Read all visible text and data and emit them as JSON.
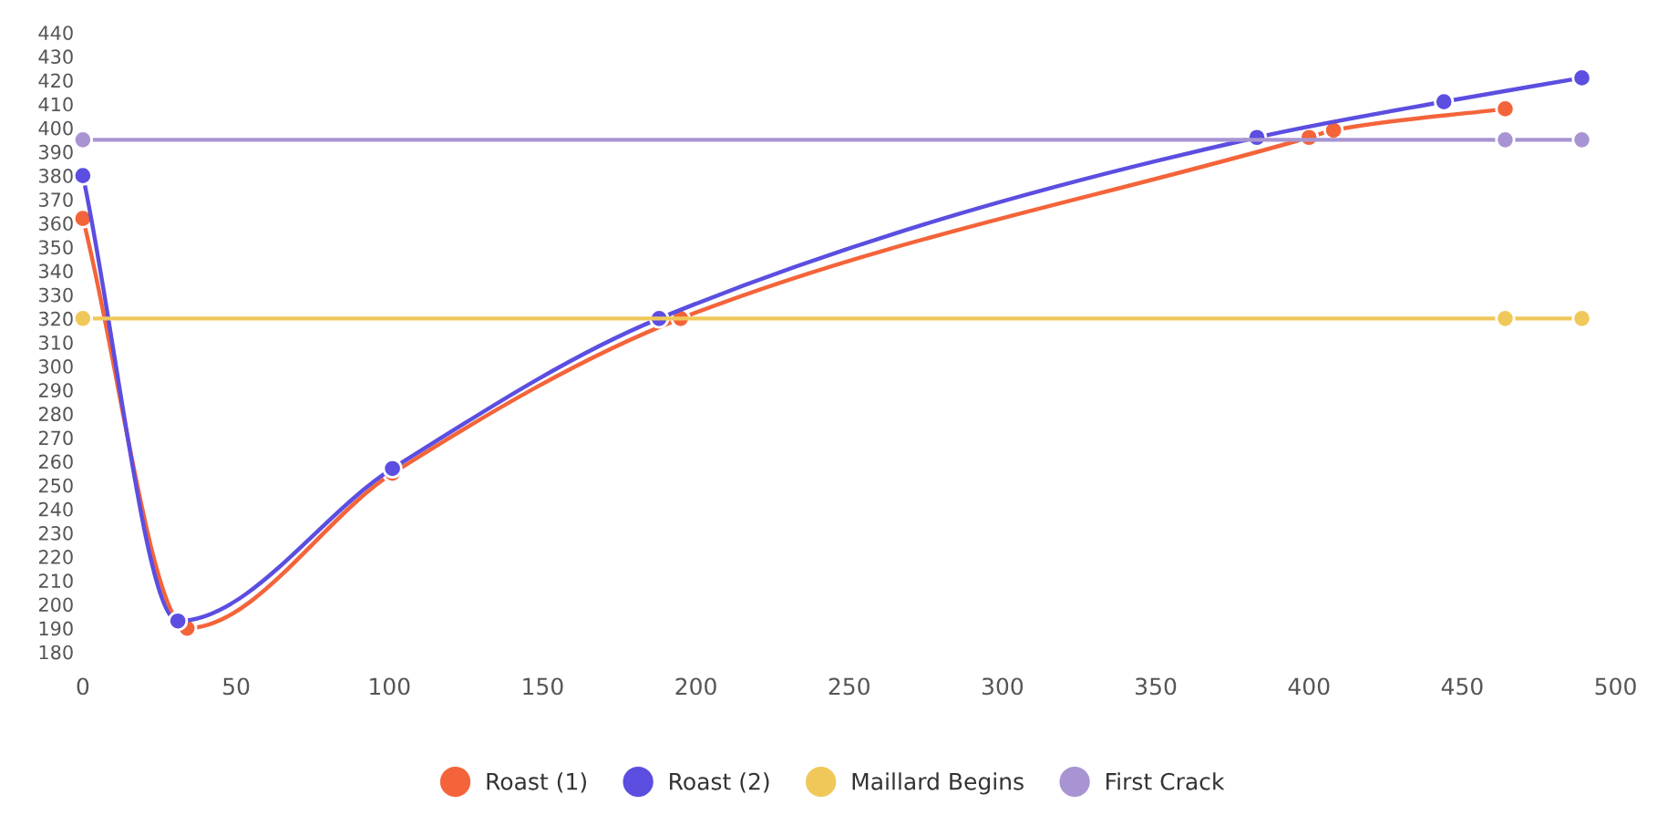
{
  "chart_data": {
    "type": "line",
    "series": [
      {
        "name": "Roast (1)",
        "color": "#f4643a",
        "x": [
          0,
          34,
          101,
          195,
          400,
          408,
          464
        ],
        "values": [
          362,
          190,
          255,
          320,
          396,
          399,
          408
        ]
      },
      {
        "name": "Roast (2)",
        "color": "#5b4ee0",
        "x": [
          0,
          31,
          101,
          188,
          383,
          444,
          489
        ],
        "values": [
          380,
          193,
          257,
          320,
          396,
          411,
          421
        ]
      },
      {
        "name": "Maillard Begins",
        "color": "#f0c85a",
        "x": [
          0,
          464,
          489
        ],
        "values": [
          320,
          320,
          320
        ]
      },
      {
        "name": "First Crack",
        "color": "#a894d2",
        "x": [
          0,
          464,
          489
        ],
        "values": [
          395,
          395,
          395
        ]
      }
    ],
    "xlim": [
      0,
      500
    ],
    "xticks": [
      0,
      50,
      100,
      150,
      200,
      250,
      300,
      350,
      400,
      450,
      500
    ],
    "ylim": [
      180,
      440
    ],
    "yticks": [
      180,
      190,
      200,
      210,
      220,
      230,
      240,
      250,
      260,
      270,
      280,
      290,
      300,
      310,
      320,
      330,
      340,
      350,
      360,
      370,
      380,
      390,
      400,
      410,
      420,
      430,
      440
    ],
    "grid": false,
    "legend": "bottom",
    "marker": "circle",
    "line_style": "solid"
  }
}
